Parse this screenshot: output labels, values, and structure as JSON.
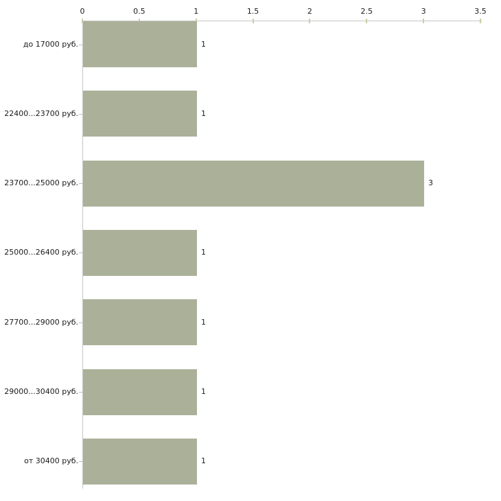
{
  "chart_data": {
    "type": "bar",
    "orientation": "horizontal",
    "title": "",
    "xlabel": "",
    "ylabel": "",
    "categories": [
      "до 17000 руб.",
      "22400...23700 руб.",
      "23700...25000 руб.",
      "25000...26400 руб.",
      "27700...29000 руб.",
      "29000...30400 руб.",
      "от 30400 руб."
    ],
    "values": [
      1,
      1,
      3,
      1,
      1,
      1,
      1
    ],
    "value_labels": [
      "1",
      "1",
      "3",
      "1",
      "1",
      "1",
      "1"
    ],
    "xticks": [
      "0",
      "0.5",
      "1",
      "1.5",
      "2",
      "2.5",
      "3",
      "3.5"
    ],
    "xlim": [
      0,
      3.5
    ],
    "xaxis_position": "top",
    "grid": false,
    "legend_position": "none",
    "colors": {
      "bar": "#abb199",
      "axis": "#c6c6c6",
      "x_tick": "#cdcdaa",
      "y_tick": "#c4baba",
      "text": "#1a1a1a",
      "background": "#ffffff"
    }
  }
}
